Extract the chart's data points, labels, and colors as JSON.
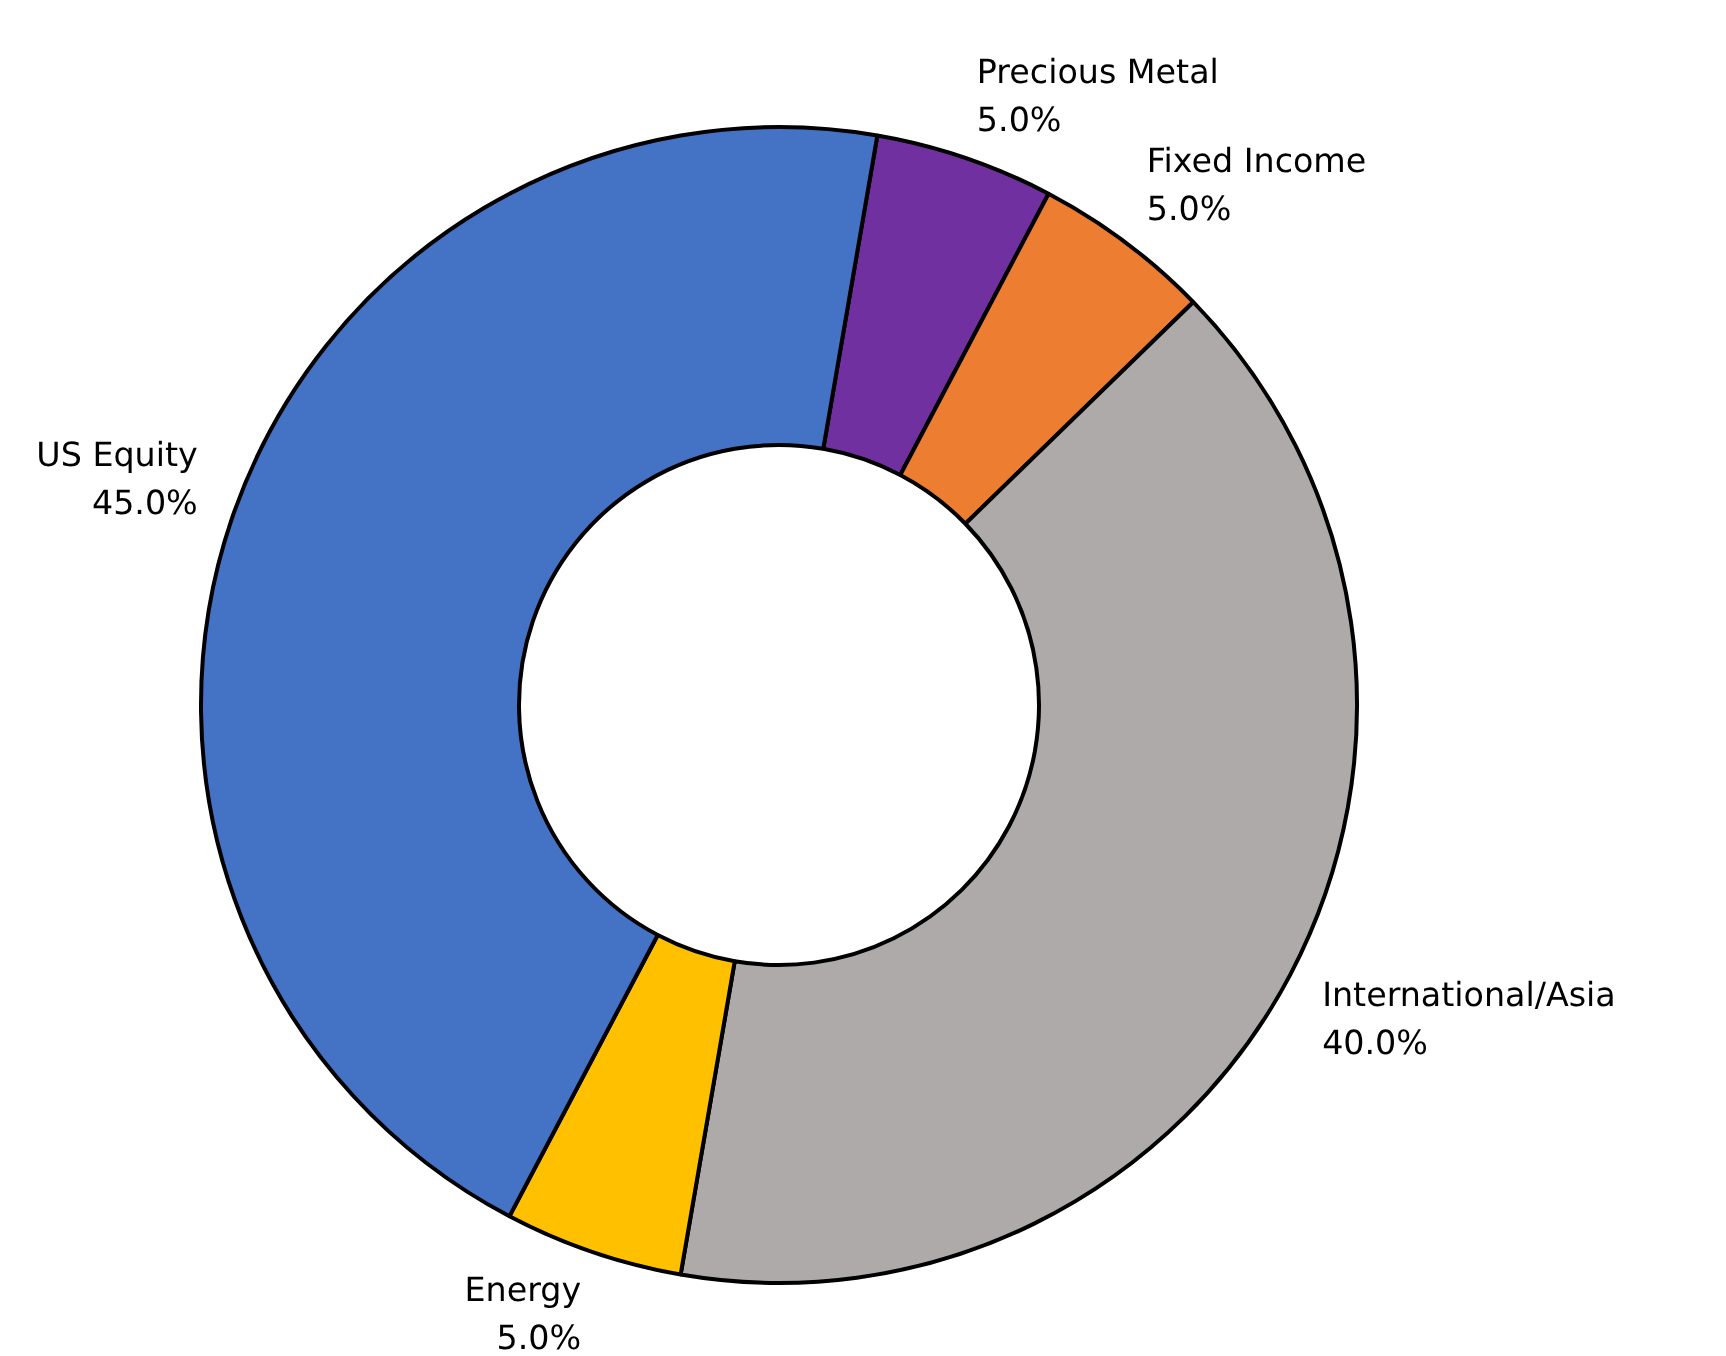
{
  "chart_data": {
    "type": "donut",
    "categories": [
      "Precious Metal",
      "Fixed Income",
      "International/Asia",
      "Energy",
      "US Equity"
    ],
    "values": [
      5,
      5,
      40,
      5,
      45
    ],
    "colors": [
      "#7030a0",
      "#ed7d31",
      "#aeaaaa",
      "#ffc000",
      "#4472c4"
    ],
    "value_labels": [
      "5.0%",
      "5.0%",
      "40.0%",
      "5.0%",
      "45.0%"
    ]
  }
}
